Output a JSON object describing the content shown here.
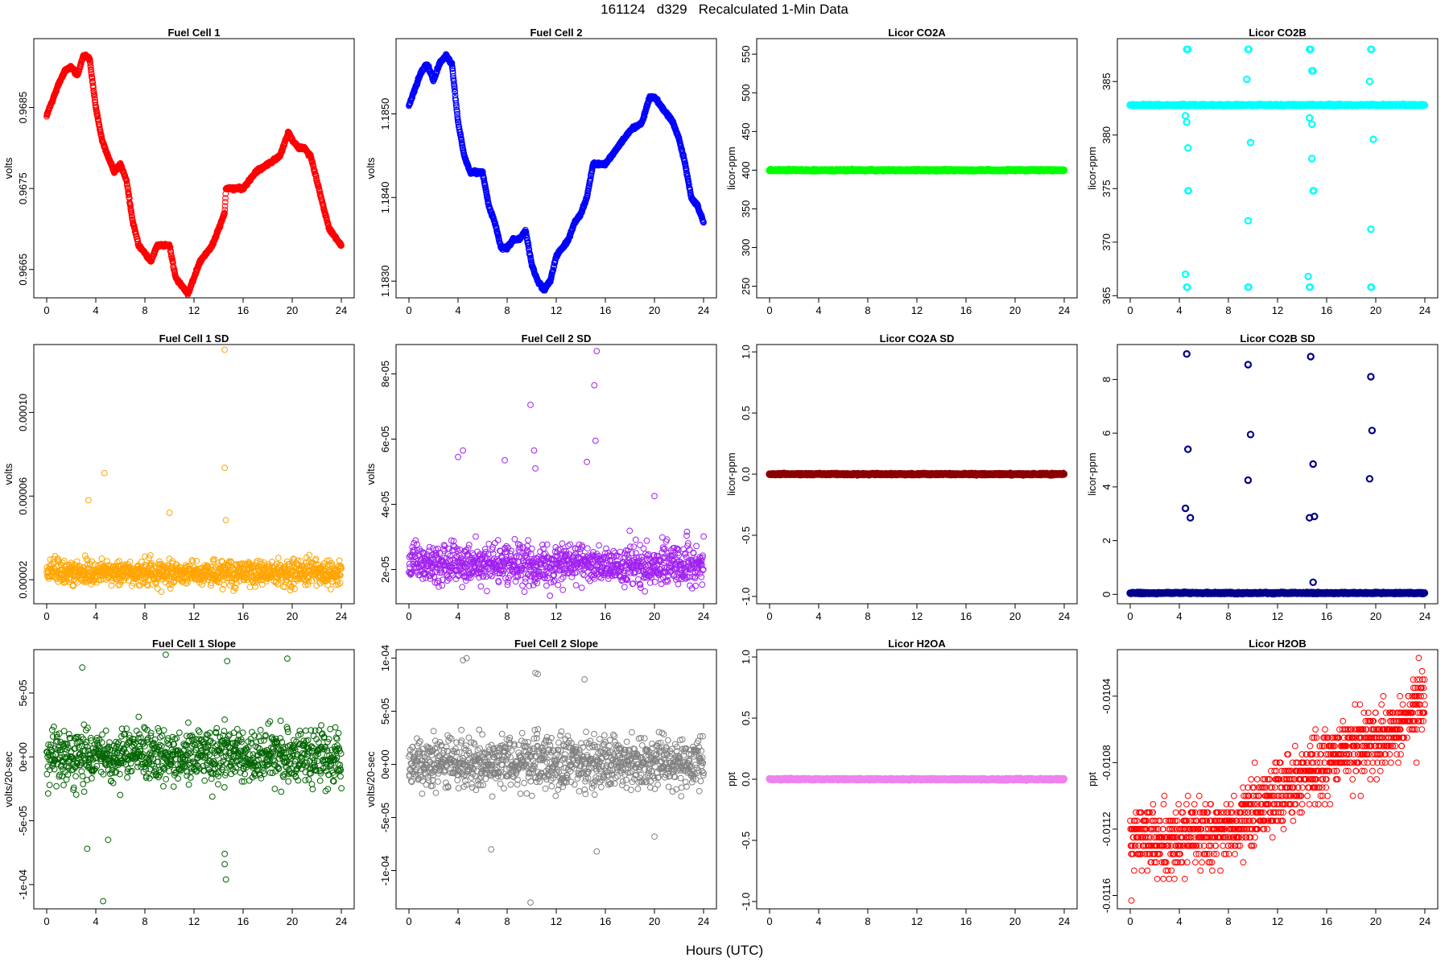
{
  "figure": {
    "title": "161124   d329   Recalculated 1-Min Data",
    "xlabel": "Hours (UTC)"
  },
  "chart_data": [
    {
      "id": "fc1",
      "type": "scatter",
      "title": "Fuel Cell 1",
      "ylabel": "volts",
      "color": "#ff0000",
      "xlim": [
        0,
        24
      ],
      "xticks": [
        0,
        4,
        8,
        12,
        16,
        20,
        24
      ],
      "xtick_labels": [
        "0",
        "4",
        "8",
        "12",
        "16",
        "20",
        "24"
      ],
      "ylim": [
        0.96615,
        0.96935
      ],
      "yticks": [
        0.9665,
        0.9675,
        0.9685
      ],
      "ytick_labels": [
        "0.9665",
        "0.9675",
        "0.9685"
      ],
      "style": "line",
      "keypoints": [
        [
          0,
          0.9684
        ],
        [
          0.5,
          0.9686
        ],
        [
          1,
          0.9688
        ],
        [
          1.5,
          0.96895
        ],
        [
          2,
          0.969
        ],
        [
          2.5,
          0.9689
        ],
        [
          3,
          0.96915
        ],
        [
          3.5,
          0.9691
        ],
        [
          4,
          0.9685
        ],
        [
          4.5,
          0.9681
        ],
        [
          5,
          0.9679
        ],
        [
          5.5,
          0.9677
        ],
        [
          6,
          0.9678
        ],
        [
          6.5,
          0.9676
        ],
        [
          7,
          0.9671
        ],
        [
          7.5,
          0.9668
        ],
        [
          8,
          0.9667
        ],
        [
          8.5,
          0.9666
        ],
        [
          9,
          0.9668
        ],
        [
          9.5,
          0.9668
        ],
        [
          10,
          0.9668
        ],
        [
          10.5,
          0.9664
        ],
        [
          11,
          0.9663
        ],
        [
          11.5,
          0.9662
        ],
        [
          12,
          0.9664
        ],
        [
          12.5,
          0.9666
        ],
        [
          13,
          0.9667
        ],
        [
          13.5,
          0.9668
        ],
        [
          14,
          0.967
        ],
        [
          14.5,
          0.9672
        ],
        [
          14.6,
          0.9675
        ],
        [
          15,
          0.9675
        ],
        [
          16,
          0.9675
        ],
        [
          16.5,
          0.9676
        ],
        [
          17,
          0.9677
        ],
        [
          18,
          0.9678
        ],
        [
          19,
          0.9679
        ],
        [
          19.7,
          0.9682
        ],
        [
          20,
          0.9681
        ],
        [
          20.5,
          0.968
        ],
        [
          21,
          0.968
        ],
        [
          21.5,
          0.9679
        ],
        [
          22,
          0.9676
        ],
        [
          22.5,
          0.9673
        ],
        [
          23,
          0.967
        ],
        [
          23.5,
          0.9669
        ],
        [
          24,
          0.9668
        ]
      ]
    },
    {
      "id": "fc2",
      "type": "scatter",
      "title": "Fuel Cell 2",
      "ylabel": "volts",
      "color": "#0000ff",
      "xlim": [
        0,
        24
      ],
      "xticks": [
        0,
        4,
        8,
        12,
        16,
        20,
        24
      ],
      "xtick_labels": [
        "0",
        "4",
        "8",
        "12",
        "16",
        "20",
        "24"
      ],
      "ylim": [
        1.1828,
        1.1859
      ],
      "yticks": [
        1.183,
        1.184,
        1.185
      ],
      "ytick_labels": [
        "1.1830",
        "1.1840",
        "1.1850"
      ],
      "style": "line",
      "keypoints": [
        [
          0,
          1.1851
        ],
        [
          0.5,
          1.1853
        ],
        [
          1,
          1.1855
        ],
        [
          1.5,
          1.1856
        ],
        [
          2,
          1.1854
        ],
        [
          2.5,
          1.1856
        ],
        [
          3,
          1.1857
        ],
        [
          3.5,
          1.1856
        ],
        [
          4,
          1.1849
        ],
        [
          4.5,
          1.1845
        ],
        [
          5,
          1.1843
        ],
        [
          5.5,
          1.1843
        ],
        [
          6,
          1.1843
        ],
        [
          6.5,
          1.1839
        ],
        [
          7,
          1.1837
        ],
        [
          7.5,
          1.1834
        ],
        [
          8,
          1.1834
        ],
        [
          8.5,
          1.1835
        ],
        [
          9,
          1.1835
        ],
        [
          9.5,
          1.1836
        ],
        [
          10,
          1.1832
        ],
        [
          10.5,
          1.183
        ],
        [
          11,
          1.1829
        ],
        [
          11.5,
          1.183
        ],
        [
          12,
          1.1833
        ],
        [
          12.5,
          1.1834
        ],
        [
          13,
          1.1835
        ],
        [
          13.5,
          1.1837
        ],
        [
          14,
          1.1838
        ],
        [
          14.5,
          1.184
        ],
        [
          15,
          1.1844
        ],
        [
          16,
          1.1844
        ],
        [
          16.5,
          1.1845
        ],
        [
          17,
          1.1846
        ],
        [
          18,
          1.1848
        ],
        [
          19,
          1.1849
        ],
        [
          19.6,
          1.1852
        ],
        [
          20,
          1.1852
        ],
        [
          20.5,
          1.1851
        ],
        [
          21,
          1.185
        ],
        [
          21.5,
          1.1849
        ],
        [
          22,
          1.1847
        ],
        [
          22.5,
          1.1844
        ],
        [
          23,
          1.184
        ],
        [
          23.5,
          1.1839
        ],
        [
          24,
          1.1837
        ]
      ]
    },
    {
      "id": "co2a",
      "type": "scatter",
      "title": "Licor CO2A",
      "ylabel": "licor-ppm",
      "color": "#00ff00",
      "xlim": [
        0,
        24
      ],
      "xticks": [
        0,
        4,
        8,
        12,
        16,
        20,
        24
      ],
      "xtick_labels": [
        "0",
        "4",
        "8",
        "12",
        "16",
        "20",
        "24"
      ],
      "ylim": [
        235,
        570
      ],
      "yticks": [
        250,
        300,
        350,
        400,
        450,
        500,
        550
      ],
      "ytick_labels": [
        "250",
        "300",
        "350",
        "400",
        "450",
        "500",
        "550"
      ],
      "style": "flat",
      "value": 400
    },
    {
      "id": "co2b",
      "type": "scatter",
      "title": "Licor CO2B",
      "ylabel": "licor-ppm",
      "color": "#00ffff",
      "xlim": [
        0,
        24
      ],
      "xticks": [
        0,
        4,
        8,
        12,
        16,
        20,
        24
      ],
      "xtick_labels": [
        "0",
        "4",
        "8",
        "12",
        "16",
        "20",
        "24"
      ],
      "ylim": [
        364.8,
        389.0
      ],
      "yticks": [
        365,
        370,
        375,
        380,
        385
      ],
      "ytick_labels": [
        "365",
        "370",
        "375",
        "380",
        "385"
      ],
      "style": "flat",
      "value": 382.8,
      "outliers": [
        [
          4.6,
          388.0
        ],
        [
          4.65,
          388.0
        ],
        [
          4.7,
          388.0
        ],
        [
          4.5,
          381.8
        ],
        [
          4.6,
          381.2
        ],
        [
          4.7,
          378.8
        ],
        [
          4.7,
          374.8
        ],
        [
          4.75,
          374.8
        ],
        [
          4.5,
          367.0
        ],
        [
          4.6,
          365.8
        ],
        [
          4.65,
          365.8
        ],
        [
          9.6,
          388.0
        ],
        [
          9.65,
          388.0
        ],
        [
          9.5,
          385.2
        ],
        [
          9.8,
          379.3
        ],
        [
          9.6,
          372.0
        ],
        [
          9.6,
          365.8
        ],
        [
          9.65,
          365.8
        ],
        [
          14.6,
          388.0
        ],
        [
          14.65,
          388.0
        ],
        [
          14.7,
          388.0
        ],
        [
          14.8,
          386.0
        ],
        [
          14.9,
          386.0
        ],
        [
          14.6,
          381.6
        ],
        [
          14.8,
          381.0
        ],
        [
          14.8,
          377.8
        ],
        [
          14.9,
          374.8
        ],
        [
          14.95,
          374.8
        ],
        [
          14.5,
          366.8
        ],
        [
          14.6,
          365.8
        ],
        [
          14.65,
          365.8
        ],
        [
          19.6,
          388.0
        ],
        [
          19.65,
          388.0
        ],
        [
          19.5,
          385.0
        ],
        [
          19.8,
          379.6
        ],
        [
          19.6,
          371.2
        ],
        [
          19.6,
          365.8
        ],
        [
          19.65,
          365.8
        ]
      ]
    },
    {
      "id": "fc1sd",
      "type": "scatter",
      "title": "Fuel Cell 1 SD",
      "ylabel": "volts",
      "color": "#ffa500",
      "xlim": [
        0,
        24
      ],
      "xticks": [
        0,
        4,
        8,
        12,
        16,
        20,
        24
      ],
      "xtick_labels": [
        "0",
        "4",
        "8",
        "12",
        "16",
        "20",
        "24"
      ],
      "ylim": [
        8.5e-06,
        0.0001325
      ],
      "yticks": [
        2e-05,
        6e-05,
        0.0001
      ],
      "ytick_labels": [
        "0.00002",
        "0.00006",
        "0.00010"
      ],
      "style": "noise",
      "base": 2.35e-05,
      "spread": 5.5e-06,
      "outliers": [
        [
          14.5,
          0.00013
        ],
        [
          14.5,
          7.35e-05
        ],
        [
          4.7,
          7.1e-05
        ],
        [
          3.4,
          5.8e-05
        ],
        [
          14.6,
          4.85e-05
        ],
        [
          10.0,
          5.2e-05
        ]
      ]
    },
    {
      "id": "fc2sd",
      "type": "scatter",
      "title": "Fuel Cell 2 SD",
      "ylabel": "volts",
      "color": "#a020f0",
      "xlim": [
        0,
        24
      ],
      "xticks": [
        0,
        4,
        8,
        12,
        16,
        20,
        24
      ],
      "xtick_labels": [
        "0",
        "4",
        "8",
        "12",
        "16",
        "20",
        "24"
      ],
      "ylim": [
        9.5e-06,
        8.9e-05
      ],
      "yticks": [
        2e-05,
        4e-05,
        6e-05,
        8e-05
      ],
      "ytick_labels": [
        "2e-05",
        "4e-05",
        "6e-05",
        "8e-05"
      ],
      "style": "noise",
      "base": 2.15e-05,
      "spread": 5.5e-06,
      "outliers": [
        [
          15.3,
          8.7e-05
        ],
        [
          15.1,
          7.65e-05
        ],
        [
          9.9,
          7.05e-05
        ],
        [
          15.2,
          5.95e-05
        ],
        [
          4.4,
          5.65e-05
        ],
        [
          4.0,
          5.45e-05
        ],
        [
          7.8,
          5.35e-05
        ],
        [
          10.2,
          5.65e-05
        ],
        [
          10.3,
          5.1e-05
        ],
        [
          14.5,
          5.3e-05
        ],
        [
          20.0,
          4.25e-05
        ]
      ]
    },
    {
      "id": "co2asd",
      "type": "scatter",
      "title": "Licor CO2A SD",
      "ylabel": "licor-ppm",
      "color": "#8b0000",
      "xlim": [
        0,
        24
      ],
      "xticks": [
        0,
        4,
        8,
        12,
        16,
        20,
        24
      ],
      "xtick_labels": [
        "0",
        "4",
        "8",
        "12",
        "16",
        "20",
        "24"
      ],
      "ylim": [
        -1.06,
        1.06
      ],
      "yticks": [
        -1,
        -0.5,
        0,
        0.5,
        1
      ],
      "ytick_labels": [
        "-1.0",
        "-0.5",
        "0.0",
        "0.5",
        "1.0"
      ],
      "style": "flat",
      "value": 0
    },
    {
      "id": "co2bsd",
      "type": "scatter",
      "title": "Licor CO2B SD",
      "ylabel": "licor-ppm",
      "color": "#00008b",
      "xlim": [
        0,
        24
      ],
      "xticks": [
        0,
        4,
        8,
        12,
        16,
        20,
        24
      ],
      "xtick_labels": [
        "0",
        "4",
        "8",
        "12",
        "16",
        "20",
        "24"
      ],
      "ylim": [
        -0.35,
        9.3
      ],
      "yticks": [
        0,
        2,
        4,
        6,
        8
      ],
      "ytick_labels": [
        "0",
        "2",
        "4",
        "6",
        "8"
      ],
      "style": "flat",
      "value": 0.05,
      "outliers": [
        [
          4.6,
          8.95
        ],
        [
          4.7,
          5.4
        ],
        [
          4.5,
          3.2
        ],
        [
          4.9,
          2.85
        ],
        [
          9.6,
          8.55
        ],
        [
          9.8,
          5.95
        ],
        [
          9.6,
          4.25
        ],
        [
          14.7,
          8.85
        ],
        [
          14.9,
          4.85
        ],
        [
          14.6,
          2.85
        ],
        [
          15.0,
          2.9
        ],
        [
          14.9,
          0.45
        ],
        [
          19.6,
          8.1
        ],
        [
          19.7,
          6.1
        ],
        [
          19.5,
          4.3
        ]
      ]
    },
    {
      "id": "fc1slope",
      "type": "scatter",
      "title": "Fuel Cell 1 Slope",
      "ylabel": "volts/20-sec",
      "color": "#006400",
      "xlim": [
        0,
        24
      ],
      "xticks": [
        0,
        4,
        8,
        12,
        16,
        20,
        24
      ],
      "xtick_labels": [
        "0",
        "4",
        "8",
        "12",
        "16",
        "20",
        "24"
      ],
      "ylim": [
        -0.000119,
        8.4e-05
      ],
      "yticks": [
        -0.0001,
        -5e-05,
        0,
        5e-05
      ],
      "ytick_labels": [
        "-1e-04",
        "-5e-05",
        "0e+00",
        "5e-05"
      ],
      "style": "noise",
      "base": 5e-07,
      "spread": 1.85e-05,
      "outliers": [
        [
          4.6,
          -0.000113
        ],
        [
          14.6,
          -9.6e-05
        ],
        [
          14.5,
          -8.4e-05
        ],
        [
          14.5,
          -7.6e-05
        ],
        [
          3.3,
          -7.2e-05
        ],
        [
          9.7,
          8e-05
        ],
        [
          19.6,
          7.7e-05
        ],
        [
          14.7,
          7.5e-05
        ],
        [
          2.9,
          7e-05
        ],
        [
          5.0,
          -6.5e-05
        ]
      ]
    },
    {
      "id": "fc2slope",
      "type": "scatter",
      "title": "Fuel Cell 2 Slope",
      "ylabel": "volts/20-sec",
      "color": "#808080",
      "xlim": [
        0,
        24
      ],
      "xticks": [
        0,
        4,
        8,
        12,
        16,
        20,
        24
      ],
      "xtick_labels": [
        "0",
        "4",
        "8",
        "12",
        "16",
        "20",
        "24"
      ],
      "ylim": [
        -0.000136,
        0.000108
      ],
      "yticks": [
        -0.0001,
        -5e-05,
        0,
        5e-05,
        0.0001
      ],
      "ytick_labels": [
        "-1e-04",
        "-5e-05",
        "0e+00",
        "5e-05",
        "1e-04"
      ],
      "style": "noise",
      "base": 1e-06,
      "spread": 2.2e-05,
      "outliers": [
        [
          9.9,
          -0.00013
        ],
        [
          15.3,
          -8.2e-05
        ],
        [
          6.7,
          -8e-05
        ],
        [
          4.4,
          9.8e-05
        ],
        [
          4.7,
          0.0001
        ],
        [
          10.3,
          8.6e-05
        ],
        [
          10.5,
          8.5e-05
        ],
        [
          14.3,
          8e-05
        ],
        [
          20.0,
          -6.8e-05
        ]
      ]
    },
    {
      "id": "h2oa",
      "type": "scatter",
      "title": "Licor H2OA",
      "ylabel": "ppt",
      "color": "#ee82ee",
      "xlim": [
        0,
        24
      ],
      "xticks": [
        0,
        4,
        8,
        12,
        16,
        20,
        24
      ],
      "xtick_labels": [
        "0",
        "4",
        "8",
        "12",
        "16",
        "20",
        "24"
      ],
      "ylim": [
        -1.06,
        1.06
      ],
      "yticks": [
        -1,
        -0.5,
        0,
        0.5,
        1
      ],
      "ytick_labels": [
        "-1.0",
        "-0.5",
        "0.0",
        "0.5",
        "1.0"
      ],
      "style": "flat",
      "value": 0
    },
    {
      "id": "h2ob",
      "type": "scatter",
      "title": "Licor H2OB",
      "ylabel": "ppt",
      "color": "#ff0000",
      "xlim": [
        0,
        24
      ],
      "xticks": [
        0,
        4,
        8,
        12,
        16,
        20,
        24
      ],
      "xtick_labels": [
        "0",
        "4",
        "8",
        "12",
        "16",
        "20",
        "24"
      ],
      "ylim": [
        -0.01168,
        -0.01012
      ],
      "yticks": [
        -0.0116,
        -0.0112,
        -0.0108,
        -0.0104
      ],
      "ytick_labels": [
        "-0.0116",
        "-0.0112",
        "-0.0108",
        "-0.0104"
      ],
      "style": "quantized",
      "quantum": 0.0001,
      "trend": [
        [
          0,
          -0.01125
        ],
        [
          4,
          -0.01125
        ],
        [
          8,
          -0.0112
        ],
        [
          12,
          -0.011
        ],
        [
          16,
          -0.0108
        ],
        [
          20,
          -0.01065
        ],
        [
          22,
          -0.0106
        ],
        [
          23,
          -0.0105
        ],
        [
          24,
          -0.0104
        ]
      ],
      "spread": 0.00024,
      "outliers": [
        [
          23.5,
          -0.01017
        ],
        [
          0.1,
          -0.01163
        ]
      ]
    }
  ]
}
